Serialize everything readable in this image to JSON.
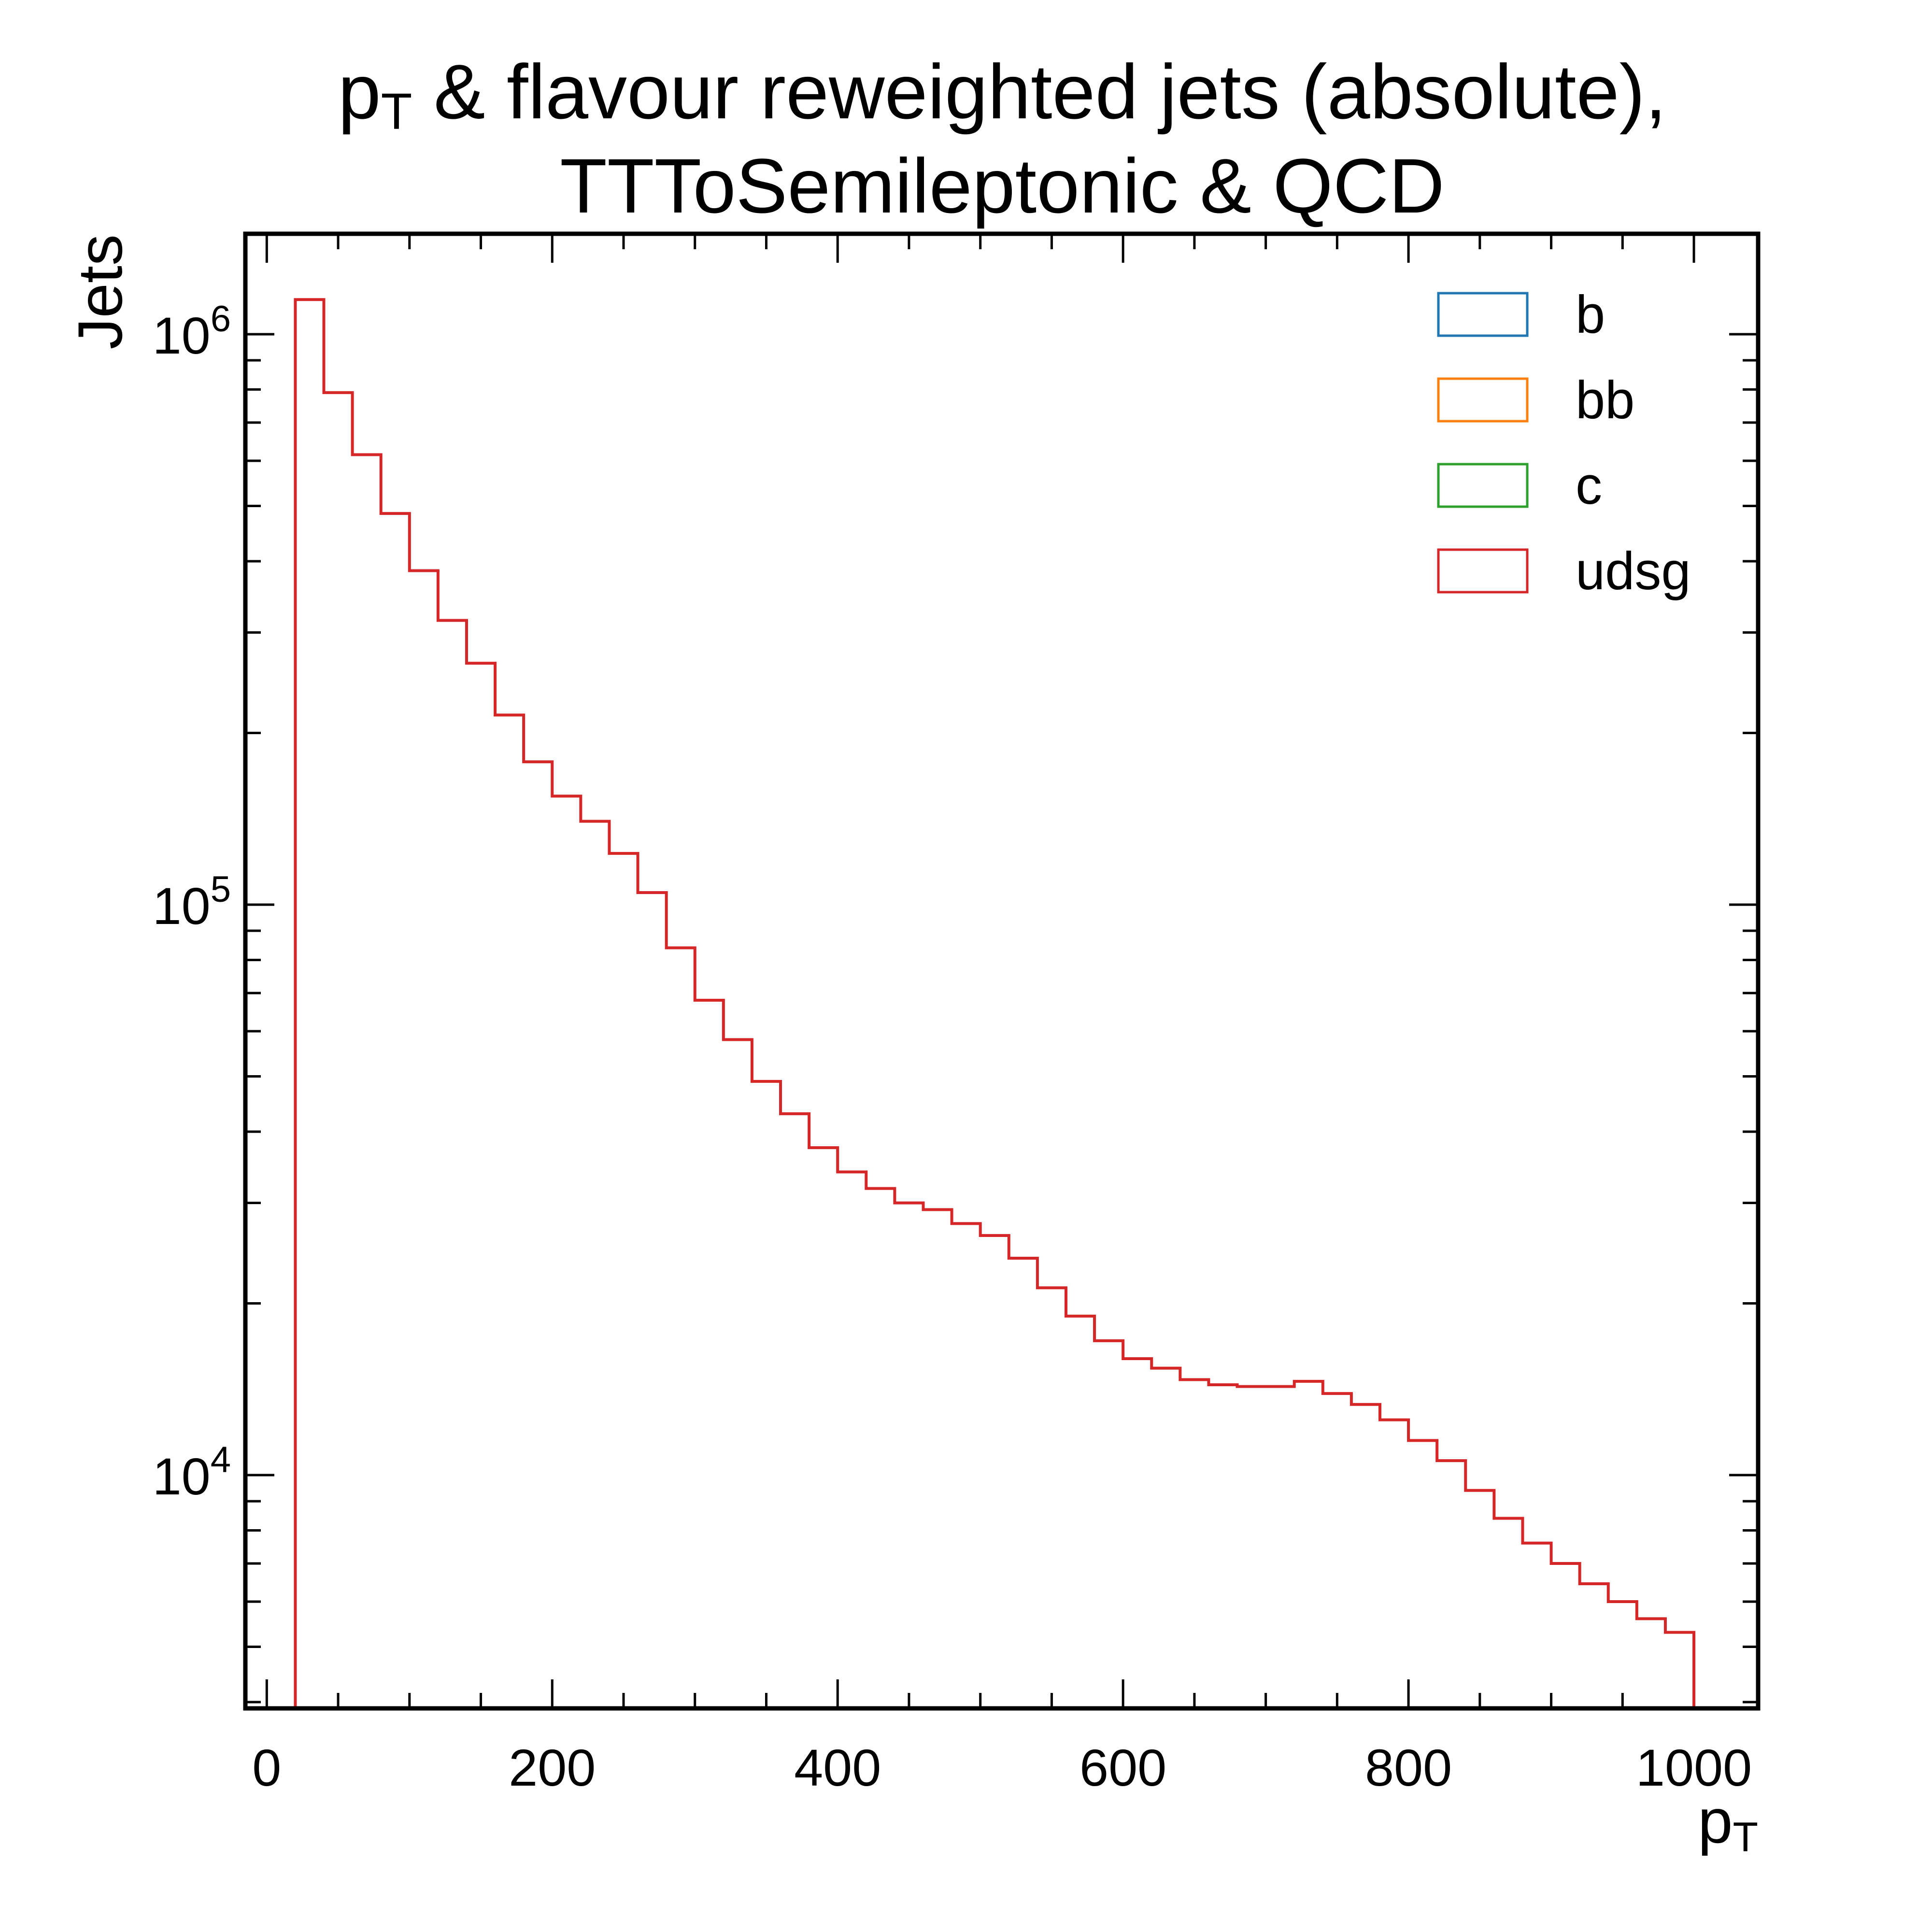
{
  "chart_data": {
    "type": "histogram-step",
    "title_line1_main": "p",
    "title_line1_sub": "T",
    "title_line1_rest": " & flavour reweighted jets (absolute),",
    "title_line2": "TTToSemileptonic & QCD",
    "xlabel_main": "p",
    "xlabel_sub": "T",
    "ylabel": "Jets",
    "xlim": [
      -15,
      1045
    ],
    "ylim": [
      3900,
      1500000
    ],
    "yscale": "log",
    "x_ticks": [
      0,
      200,
      400,
      600,
      800,
      1000
    ],
    "x_tick_labels": [
      "0",
      "200",
      "400",
      "600",
      "800",
      "1000"
    ],
    "y_ticks": [
      {
        "base": "10",
        "exp": "4",
        "value": 10000
      },
      {
        "base": "10",
        "exp": "5",
        "value": 100000
      },
      {
        "base": "10",
        "exp": "6",
        "value": 1000000
      }
    ],
    "legend_position": "top-right",
    "series": [
      {
        "name": "b",
        "color": "#1f77b4",
        "values": []
      },
      {
        "name": "bb",
        "color": "#ff7f0e",
        "values": []
      },
      {
        "name": "c",
        "color": "#2ca02c",
        "values": []
      },
      {
        "name": "udsg",
        "color": "#d62728",
        "bin_edges": [
          20,
          40,
          60,
          80,
          100,
          120,
          140,
          160,
          180,
          200,
          220,
          240,
          260,
          280,
          300,
          320,
          340,
          360,
          380,
          400,
          420,
          440,
          460,
          480,
          500,
          520,
          540,
          560,
          580,
          600,
          620,
          640,
          660,
          680,
          700,
          720,
          740,
          760,
          780,
          800,
          820,
          840,
          860,
          880,
          900,
          920,
          940,
          960,
          980,
          1000
        ],
        "values": [
          1150000,
          790000,
          615000,
          485000,
          385000,
          315000,
          265000,
          215000,
          178000,
          155000,
          140000,
          123000,
          105000,
          84000,
          68000,
          58000,
          49000,
          43000,
          37500,
          34000,
          31800,
          30000,
          29200,
          27600,
          26300,
          24000,
          21300,
          19000,
          17200,
          16000,
          15400,
          14700,
          14400,
          14300,
          14300,
          14600,
          13900,
          13300,
          12500,
          11500,
          10600,
          9400,
          8400,
          7600,
          7000,
          6450,
          6000,
          5600,
          5300
        ]
      }
    ]
  }
}
